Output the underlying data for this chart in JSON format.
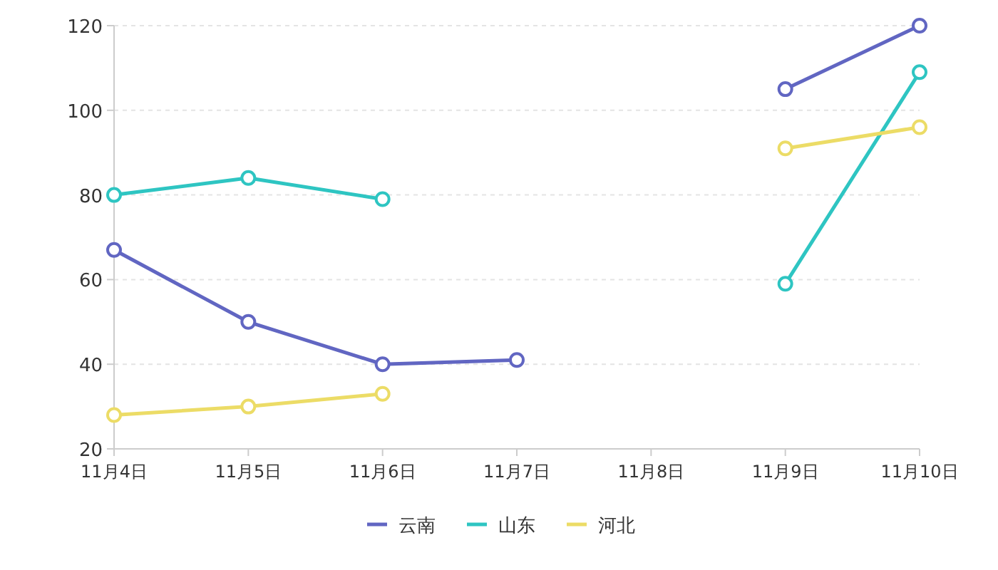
{
  "chart_data": {
    "type": "line",
    "categories": [
      "11月4日",
      "11月5日",
      "11月6日",
      "11月7日",
      "11月8日",
      "11月9日",
      "11月10日"
    ],
    "series": [
      {
        "name": "云南",
        "color": "#6166c2",
        "values": [
          67,
          50,
          40,
          41,
          null,
          105,
          120
        ]
      },
      {
        "name": "山东",
        "color": "#2ec5c2",
        "values": [
          80,
          84,
          79,
          null,
          null,
          59,
          109
        ]
      },
      {
        "name": "河北",
        "color": "#ecdc66",
        "values": [
          28,
          30,
          33,
          null,
          null,
          91,
          96
        ]
      }
    ],
    "ylim": [
      20,
      120
    ],
    "yticks": [
      20,
      40,
      60,
      80,
      100,
      120
    ],
    "grid": "y",
    "legend": "bottom",
    "marker": "circle",
    "line_style": "solid"
  }
}
